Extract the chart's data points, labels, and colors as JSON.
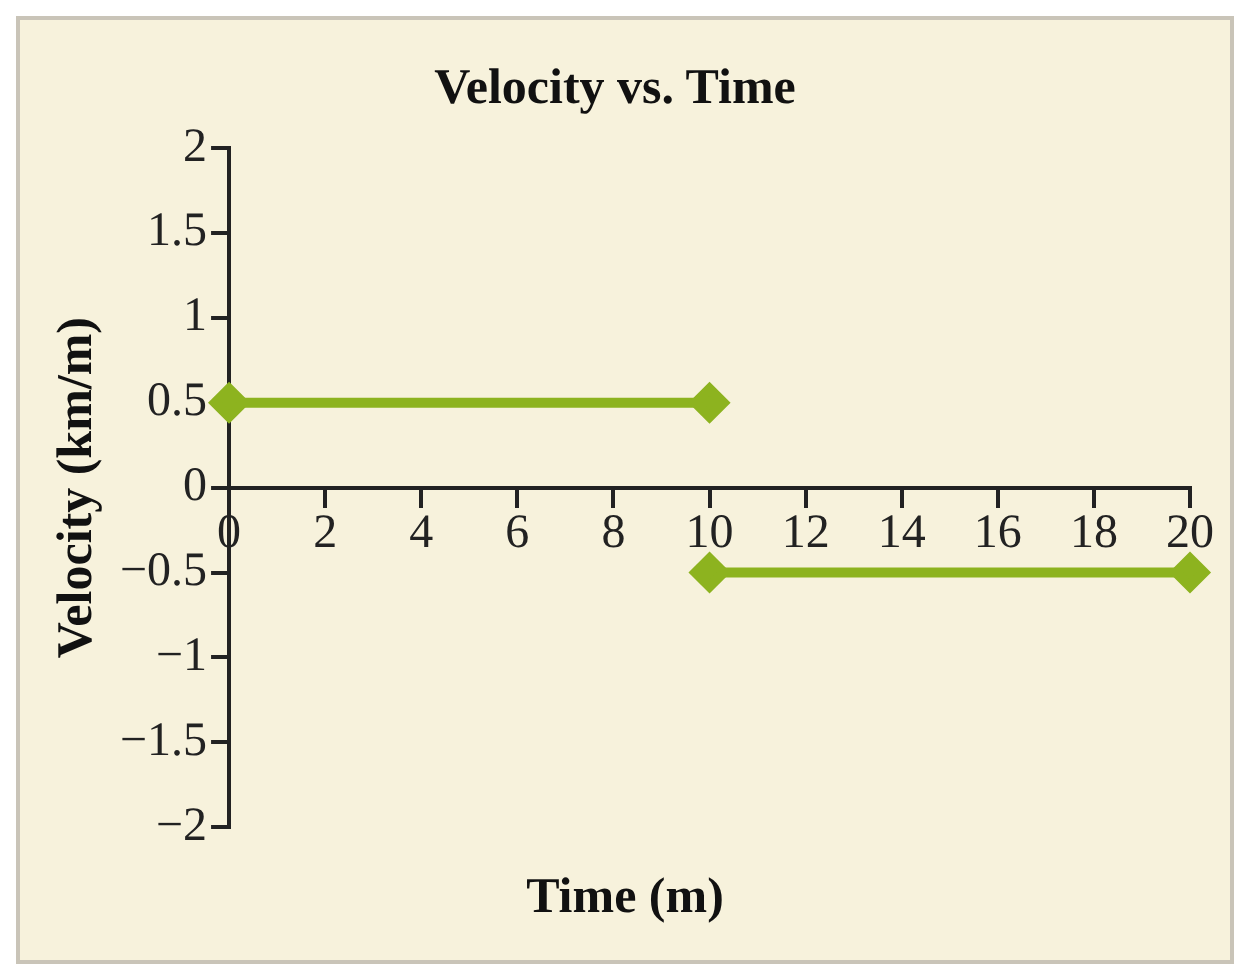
{
  "chart_data": {
    "type": "line",
    "title": "Velocity vs. Time",
    "xlabel": "Time (m)",
    "ylabel": "Velocity (km/m)",
    "series": [
      {
        "color": "#8db31f",
        "x": [
          0,
          10
        ],
        "values": [
          0.5,
          0.5
        ]
      },
      {
        "color": "#8db31f",
        "x": [
          10,
          20
        ],
        "values": [
          -0.5,
          -0.5
        ]
      }
    ],
    "xlim": [
      0,
      20
    ],
    "xticks": [
      0,
      2,
      4,
      6,
      8,
      10,
      12,
      14,
      16,
      18,
      20
    ],
    "ylim": [
      -2,
      2
    ],
    "yticks": [
      {
        "value": -2,
        "label": "−2"
      },
      {
        "value": -1.5,
        "label": "−1.5"
      },
      {
        "value": -1,
        "label": "−1"
      },
      {
        "value": -0.5,
        "label": "−0.5"
      },
      0,
      0.5,
      1,
      1.5,
      2
    ],
    "grid": false,
    "legend": false,
    "marker": "diamond",
    "line_style": "solid"
  }
}
